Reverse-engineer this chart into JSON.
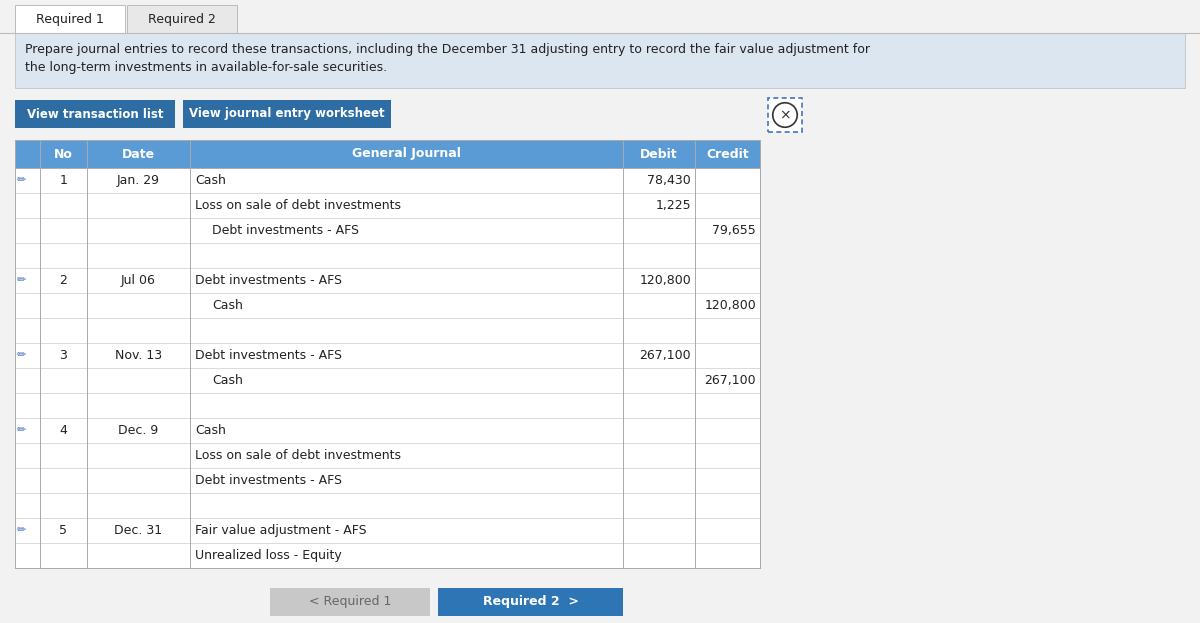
{
  "tab1": "Required 1",
  "tab2": "Required 2",
  "description": "Prepare journal entries to record these transactions, including the December 31 adjusting entry to record the fair value adjustment for\nthe long-term investments in available-for-sale securities.",
  "btn1": "View transaction list",
  "btn2": "View journal entry worksheet",
  "col_headers": [
    "No",
    "Date",
    "General Journal",
    "Debit",
    "Credit"
  ],
  "header_bg": "#5b9bd5",
  "rows": [
    {
      "no": "1",
      "date": "Jan. 29",
      "journal": "Cash",
      "debit": "78,430",
      "credit": "",
      "indent": false
    },
    {
      "no": "",
      "date": "",
      "journal": "Loss on sale of debt investments",
      "debit": "1,225",
      "credit": "",
      "indent": false
    },
    {
      "no": "",
      "date": "",
      "journal": "Debt investments - AFS",
      "debit": "",
      "credit": "79,655",
      "indent": true
    },
    {
      "no": "",
      "date": "",
      "journal": "",
      "debit": "",
      "credit": "",
      "indent": false
    },
    {
      "no": "2",
      "date": "Jul 06",
      "journal": "Debt investments - AFS",
      "debit": "120,800",
      "credit": "",
      "indent": false
    },
    {
      "no": "",
      "date": "",
      "journal": "Cash",
      "debit": "",
      "credit": "120,800",
      "indent": true
    },
    {
      "no": "",
      "date": "",
      "journal": "",
      "debit": "",
      "credit": "",
      "indent": false
    },
    {
      "no": "3",
      "date": "Nov. 13",
      "journal": "Debt investments - AFS",
      "debit": "267,100",
      "credit": "",
      "indent": false
    },
    {
      "no": "",
      "date": "",
      "journal": "Cash",
      "debit": "",
      "credit": "267,100",
      "indent": true
    },
    {
      "no": "",
      "date": "",
      "journal": "",
      "debit": "",
      "credit": "",
      "indent": false
    },
    {
      "no": "4",
      "date": "Dec. 9",
      "journal": "Cash",
      "debit": "",
      "credit": "",
      "indent": false
    },
    {
      "no": "",
      "date": "",
      "journal": "Loss on sale of debt investments",
      "debit": "",
      "credit": "",
      "indent": false
    },
    {
      "no": "",
      "date": "",
      "journal": "Debt investments - AFS",
      "debit": "",
      "credit": "",
      "indent": false
    },
    {
      "no": "",
      "date": "",
      "journal": "",
      "debit": "",
      "credit": "",
      "indent": false
    },
    {
      "no": "5",
      "date": "Dec. 31",
      "journal": "Fair value adjustment - AFS",
      "debit": "",
      "credit": "",
      "indent": false
    },
    {
      "no": "",
      "date": "",
      "journal": "Unrealized loss - Equity",
      "debit": "",
      "credit": "",
      "indent": false
    }
  ],
  "btn_nav1_text": "< Required 1",
  "btn_nav2_text": "Required 2  >",
  "bg_color": "#dce6f1",
  "btn_color": "#2e6da4",
  "btn_nav1_color": "#c8c8c8",
  "btn_nav2_color": "#2e75b6",
  "tab_active_color": "#ffffff",
  "tab_inactive_color": "#e8e8e8",
  "pencil_color": "#4472c4",
  "outer_bg": "#ffffff"
}
